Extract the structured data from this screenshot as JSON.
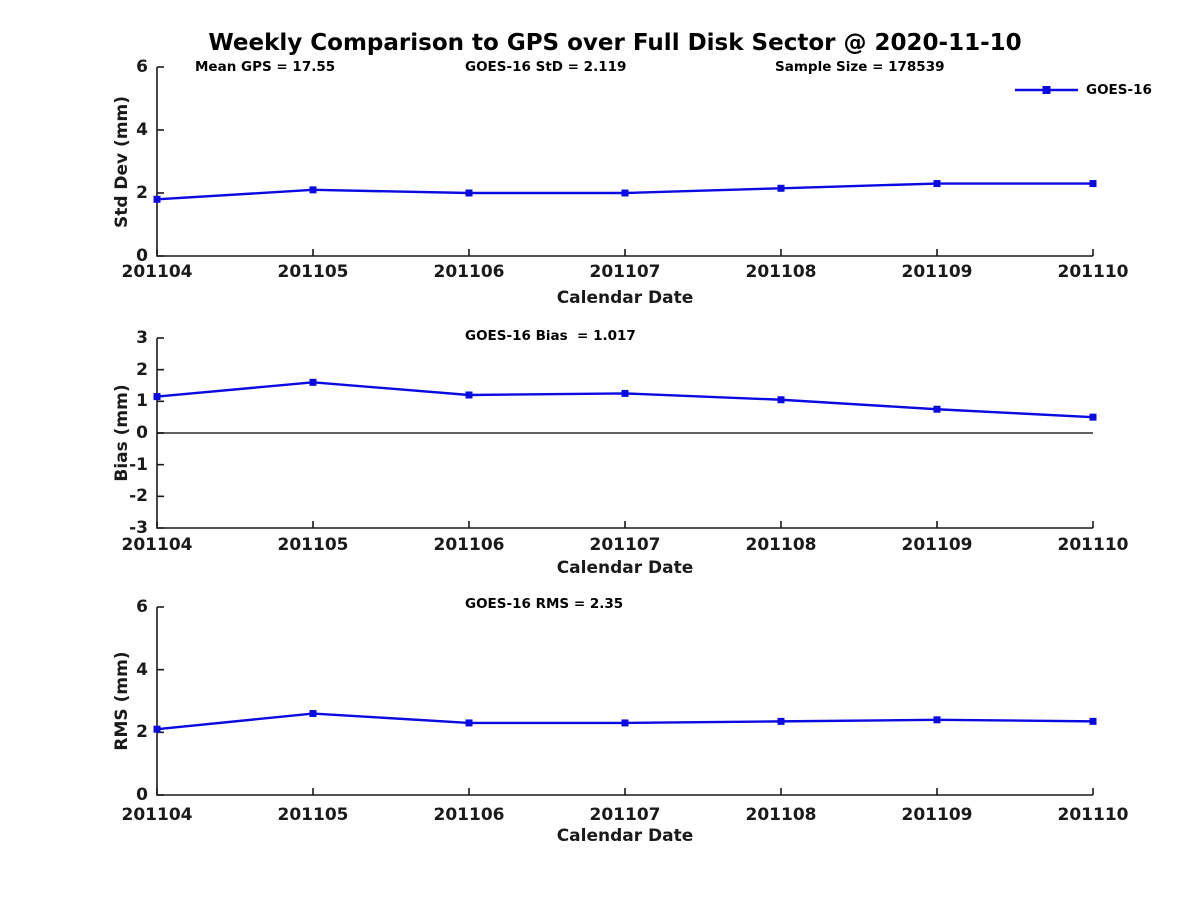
{
  "title": "Weekly Comparison to GPS over Full Disk Sector @ 2020-11-10",
  "colors": {
    "series_blue": "#0b0be1",
    "axis": "#1a1a1a",
    "text": "#000000",
    "zero_line": "#000000",
    "background": "#ffffff"
  },
  "legend": {
    "label": "GOES-16",
    "position": "top-right"
  },
  "chart_data": [
    {
      "type": "line",
      "name": "std-dev-subplot",
      "categories": [
        "201104",
        "201105",
        "201106",
        "201107",
        "201108",
        "201109",
        "201110"
      ],
      "series": [
        {
          "name": "GOES-16",
          "values": [
            1.8,
            2.1,
            2.0,
            2.0,
            2.15,
            2.3,
            2.3
          ]
        }
      ],
      "xlabel": "Calendar Date",
      "ylabel": "Std Dev (mm)",
      "ylim": [
        0,
        6
      ],
      "yticks": [
        0,
        2,
        4,
        6
      ],
      "ytick_labels": [
        "0",
        "2",
        "4",
        "6"
      ],
      "grid": false,
      "zero_line": false,
      "annotations": [
        {
          "text": "Mean GPS = 17.55",
          "x": 195
        },
        {
          "text": "GOES-16 StD = 2.119",
          "x": 465
        },
        {
          "text": "Sample Size = 178539",
          "x": 775
        }
      ]
    },
    {
      "type": "line",
      "name": "bias-subplot",
      "categories": [
        "201104",
        "201105",
        "201106",
        "201107",
        "201108",
        "201109",
        "201110"
      ],
      "series": [
        {
          "name": "GOES-16",
          "values": [
            1.15,
            1.6,
            1.2,
            1.25,
            1.05,
            0.75,
            0.5
          ]
        }
      ],
      "xlabel": "Calendar Date",
      "ylabel": "Bias (mm)",
      "ylim": [
        -3,
        3
      ],
      "yticks": [
        -3,
        -2,
        -1,
        0,
        1,
        2,
        3
      ],
      "ytick_labels": [
        "-3",
        "-2",
        "-1",
        "0",
        "1",
        "2",
        "3"
      ],
      "grid": false,
      "zero_line": true,
      "annotations": [
        {
          "text": "GOES-16 Bias  = 1.017",
          "x": 465
        }
      ]
    },
    {
      "type": "line",
      "name": "rms-subplot",
      "categories": [
        "201104",
        "201105",
        "201106",
        "201107",
        "201108",
        "201109",
        "201110"
      ],
      "series": [
        {
          "name": "GOES-16",
          "values": [
            2.1,
            2.6,
            2.3,
            2.3,
            2.35,
            2.4,
            2.35
          ]
        }
      ],
      "xlabel": "Calendar Date",
      "ylabel": "RMS (mm)",
      "ylim": [
        0,
        6
      ],
      "yticks": [
        0,
        2,
        4,
        6
      ],
      "ytick_labels": [
        "0",
        "2",
        "4",
        "6"
      ],
      "grid": false,
      "zero_line": false,
      "annotations": [
        {
          "text": "GOES-16 RMS = 2.35",
          "x": 465
        }
      ]
    }
  ]
}
